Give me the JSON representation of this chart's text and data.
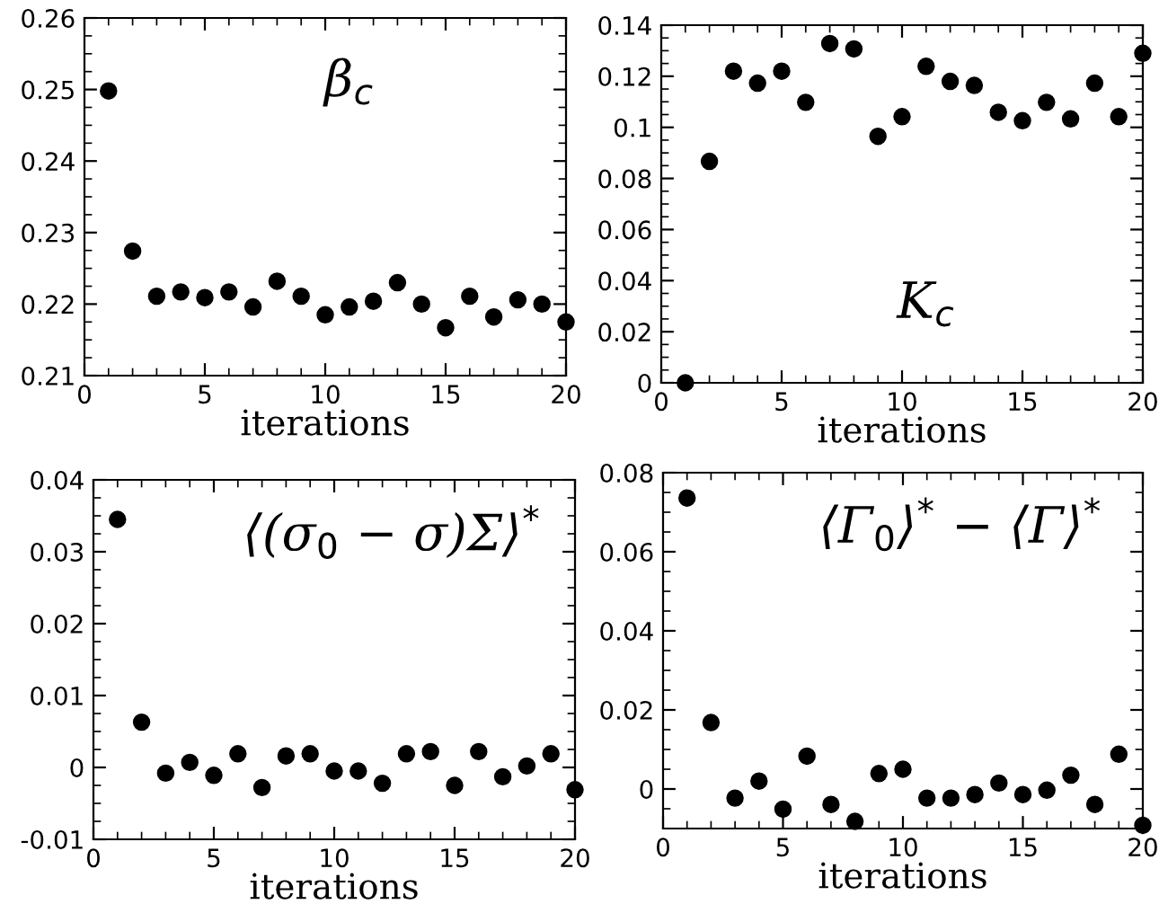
{
  "chart_data": [
    {
      "type": "scatter",
      "title": "β$_{c}$",
      "xlabel": "iterations",
      "x": [
        1,
        2,
        3,
        4,
        5,
        6,
        7,
        8,
        9,
        10,
        11,
        12,
        13,
        14,
        15,
        16,
        17,
        18,
        19,
        20
      ],
      "series": [
        {
          "color": "#000000",
          "values": [
            0.2498,
            0.2274,
            0.2211,
            0.2217,
            0.2209,
            0.2217,
            0.2196,
            0.2232,
            0.2211,
            0.2185,
            0.2196,
            0.2204,
            0.223,
            0.22,
            0.2167,
            0.2211,
            0.2182,
            0.2206,
            0.22,
            0.2175
          ]
        }
      ],
      "xlim": [
        0,
        20
      ],
      "xticks": [
        0,
        5,
        10,
        15,
        20
      ],
      "ylim": [
        0.21,
        0.26
      ],
      "yticks": [
        0.21,
        0.22,
        0.23,
        0.24,
        0.25,
        0.26
      ],
      "marker": "circle",
      "grid": false
    },
    {
      "type": "scatter",
      "title": "K$_{c}$",
      "xlabel": "iterations",
      "x": [
        1,
        2,
        3,
        4,
        5,
        6,
        7,
        8,
        9,
        10,
        11,
        12,
        13,
        14,
        15,
        16,
        17,
        18,
        19,
        20
      ],
      "series": [
        {
          "color": "#000000",
          "values": [
            0.0,
            0.0867,
            0.122,
            0.1173,
            0.122,
            0.1098,
            0.1328,
            0.1307,
            0.0965,
            0.1042,
            0.1239,
            0.118,
            0.1164,
            0.1059,
            0.1026,
            0.1098,
            0.1033,
            0.1173,
            0.1042,
            0.129
          ]
        }
      ],
      "xlim": [
        0,
        20
      ],
      "xticks": [
        0,
        5,
        10,
        15,
        20
      ],
      "ylim": [
        0,
        0.14
      ],
      "yticks": [
        0,
        0.02,
        0.04,
        0.06,
        0.08,
        0.1,
        0.12,
        0.14
      ],
      "marker": "circle",
      "grid": false
    },
    {
      "type": "scatter",
      "title": "⟨(σ$_{0}$ − σ)Σ⟩$^{*}$",
      "xlabel": "iterations",
      "x": [
        1,
        2,
        3,
        4,
        5,
        6,
        7,
        8,
        9,
        10,
        11,
        12,
        13,
        14,
        15,
        16,
        17,
        18,
        19,
        20
      ],
      "series": [
        {
          "color": "#000000",
          "values": [
            0.0345,
            0.0063,
            -0.0008,
            0.0007,
            -0.0011,
            0.0019,
            -0.0028,
            0.0016,
            0.0019,
            -0.0005,
            -0.0005,
            -0.0022,
            0.0019,
            0.0022,
            -0.0025,
            0.0022,
            -0.0013,
            0.0002,
            0.0019,
            -0.0031
          ]
        }
      ],
      "xlim": [
        0,
        20
      ],
      "xticks": [
        0,
        5,
        10,
        15,
        20
      ],
      "ylim": [
        -0.01,
        0.04
      ],
      "yticks": [
        -0.01,
        0,
        0.01,
        0.02,
        0.03,
        0.04
      ],
      "marker": "circle",
      "grid": false
    },
    {
      "type": "scatter",
      "title": "⟨Γ$_{0}$⟩$^{*}$ − ⟨Γ⟩$^{*}$",
      "xlabel": "iterations",
      "x": [
        1,
        2,
        3,
        4,
        5,
        6,
        7,
        8,
        9,
        10,
        11,
        12,
        13,
        14,
        15,
        16,
        17,
        18,
        19,
        20
      ],
      "series": [
        {
          "color": "#000000",
          "values": [
            0.0736,
            0.0168,
            -0.0023,
            0.002,
            -0.0051,
            0.0083,
            -0.0039,
            -0.0082,
            0.0039,
            0.005,
            -0.0023,
            -0.0023,
            -0.0014,
            0.0015,
            -0.0014,
            -0.0003,
            0.0035,
            -0.0039,
            0.0088,
            -0.0092
          ]
        }
      ],
      "xlim": [
        0,
        20
      ],
      "xticks": [
        0,
        5,
        10,
        15,
        20
      ],
      "ylim": [
        -0.01,
        0.08
      ],
      "yticks": [
        0,
        0.02,
        0.04,
        0.06,
        0.08
      ],
      "marker": "circle",
      "grid": false
    }
  ]
}
